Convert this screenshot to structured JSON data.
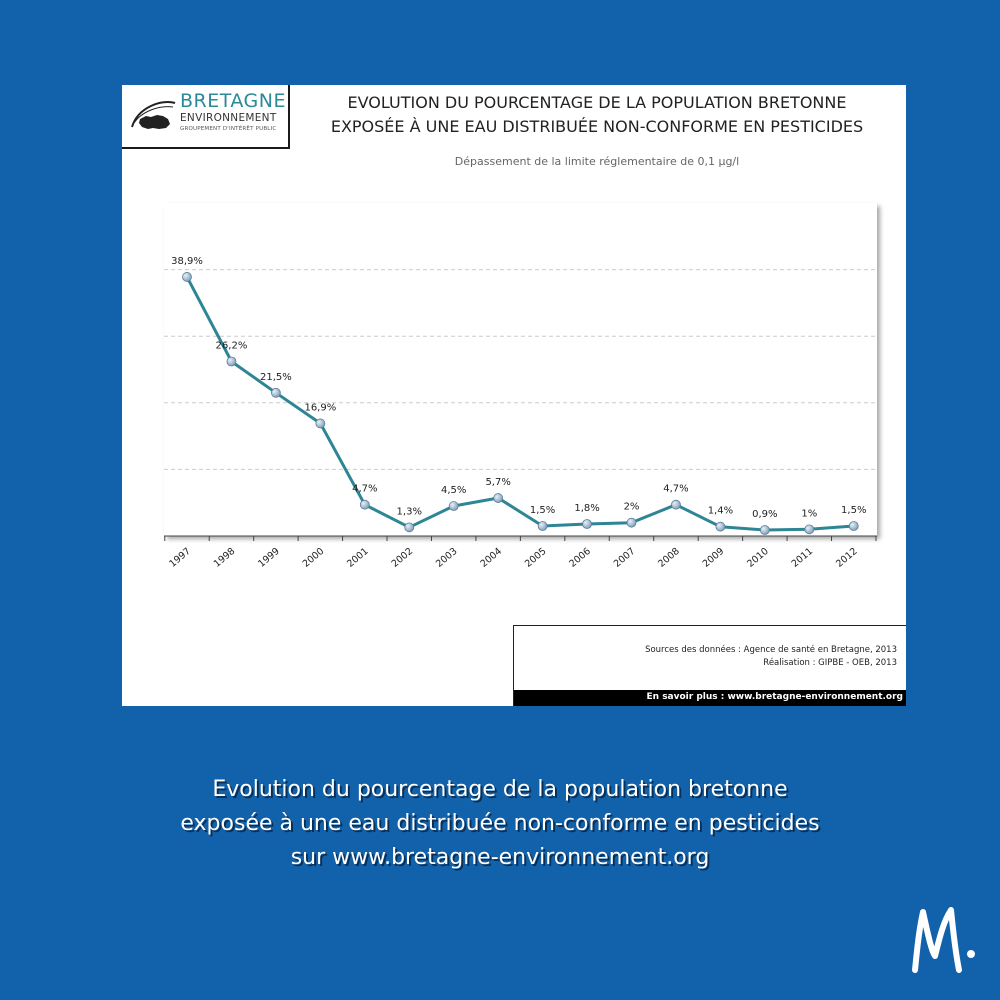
{
  "logo": {
    "line1": "BRETAGNE",
    "line2": "ENVIRONNEMENT",
    "line3": "GROUPEMENT D'INTÉRÊT PUBLIC"
  },
  "chart_data": {
    "type": "line",
    "title_line1": "EVOLUTION DU POURCENTAGE DE LA POPULATION BRETONNE",
    "title_line2": "EXPOSÉE À UNE EAU DISTRIBUÉE NON-CONFORME EN PESTICIDES",
    "subtitle": "Dépassement de la limite réglementaire de 0,1 µg/l",
    "categories": [
      "1997",
      "1998",
      "1999",
      "2000",
      "2001",
      "2002",
      "2003",
      "2004",
      "2005",
      "2006",
      "2007",
      "2008",
      "2009",
      "2010",
      "2011",
      "2012"
    ],
    "values": [
      38.9,
      26.2,
      21.5,
      16.9,
      4.7,
      1.3,
      4.5,
      5.7,
      1.5,
      1.8,
      2,
      4.7,
      1.4,
      0.9,
      1,
      1.5
    ],
    "data_labels": [
      "38,9%",
      "26,2%",
      "21,5%",
      "16,9%",
      "4,7%",
      "1,3%",
      "4,5%",
      "5,7%",
      "1,5%",
      "1,8%",
      "2%",
      "4,7%",
      "1,4%",
      "0,9%",
      "1%",
      "1,5%"
    ],
    "xlabel": "",
    "ylabel": "",
    "ylim": [
      0,
      50
    ],
    "grid": true,
    "y_tick_labels_shown": false,
    "line_color": "#2e8595",
    "marker_color": "#9fb8cc"
  },
  "sources": {
    "line1": "Sources des données : Agence de santé en Bretagne, 2013",
    "line2": "Réalisation : GIPBE - OEB, 2013",
    "more": "En savoir plus : www.bretagne-environnement.org"
  },
  "caption": {
    "line1": "Evolution du pourcentage de la population bretonne",
    "line2": "exposée à une eau distribuée non-conforme en pesticides",
    "line3": "sur www.bretagne-environnement.org"
  },
  "colors": {
    "background": "#1262ab",
    "caption_text": "#ffffff",
    "logo_teal": "#2a8a98"
  },
  "icons": {
    "logo_mark": "bretagne-map-swoosh-icon",
    "brand_mark": "handwritten-m-icon"
  }
}
